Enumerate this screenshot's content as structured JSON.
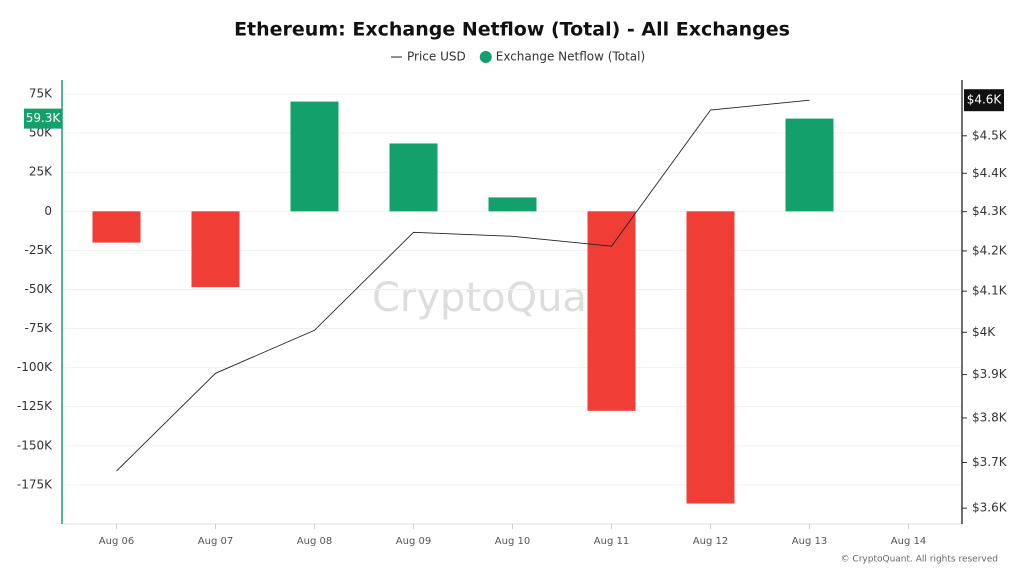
{
  "chart_data": {
    "type": "bar-line",
    "title": "Ethereum: Exchange Netflow (Total) - All Exchanges",
    "watermark": "CryptoQuant",
    "footer": "© CryptoQuant. All rights reserved",
    "categories": [
      "Aug 06",
      "Aug 07",
      "Aug 08",
      "Aug 09",
      "Aug 10",
      "Aug 11",
      "Aug 12",
      "Aug 13",
      "Aug 14"
    ],
    "series": [
      {
        "name": "Price USD",
        "type": "line",
        "axis": "y2",
        "color": "#222222",
        "values": [
          3681,
          3903,
          4005,
          4247,
          4237,
          4212,
          4570,
          4597,
          null
        ],
        "value_labels": [
          null,
          null,
          null,
          null,
          null,
          null,
          null,
          "$4.6K",
          null
        ]
      },
      {
        "name": "Exchange Netflow (Total)",
        "type": "bar",
        "color": "#14a06a",
        "negative_color": "#f03e36",
        "values": [
          -20000,
          -48500,
          70200,
          43400,
          8900,
          -127600,
          -186900,
          59300,
          null
        ],
        "value_labels": [
          null,
          null,
          null,
          null,
          null,
          null,
          null,
          "59.3K",
          null
        ]
      }
    ],
    "ylim": [
      -200000,
      84000
    ],
    "yticks": [
      {
        "value": 75000,
        "label": "75K"
      },
      {
        "value": 50000,
        "label": "50K"
      },
      {
        "value": 25000,
        "label": "25K"
      },
      0,
      {
        "value": -25000,
        "label": "-25K"
      },
      {
        "value": -50000,
        "label": "-50K"
      },
      {
        "value": -75000,
        "label": "-75K"
      },
      {
        "value": -100000,
        "label": "-100K"
      },
      {
        "value": -125000,
        "label": "-125K"
      },
      {
        "value": -150000,
        "label": "-150K"
      },
      {
        "value": -175000,
        "label": "-175K"
      }
    ],
    "y2lim": [
      3566,
      4653
    ],
    "y2log": true,
    "y2ticks": [
      {
        "value": 4500,
        "label": "$4.5K"
      },
      {
        "value": 4400,
        "label": "$4.4K"
      },
      {
        "value": 4300,
        "label": "$4.3K"
      },
      {
        "value": 4200,
        "label": "$4.2K"
      },
      {
        "value": 4100,
        "label": "$4.1K"
      },
      {
        "value": 4000,
        "label": "$4K"
      },
      {
        "value": 3900,
        "label": "$3.9K"
      },
      {
        "value": 3800,
        "label": "$3.8K"
      },
      {
        "value": 3700,
        "label": "$3.7K"
      },
      {
        "value": 3600,
        "label": "$3.6K"
      }
    ],
    "grid": true
  }
}
